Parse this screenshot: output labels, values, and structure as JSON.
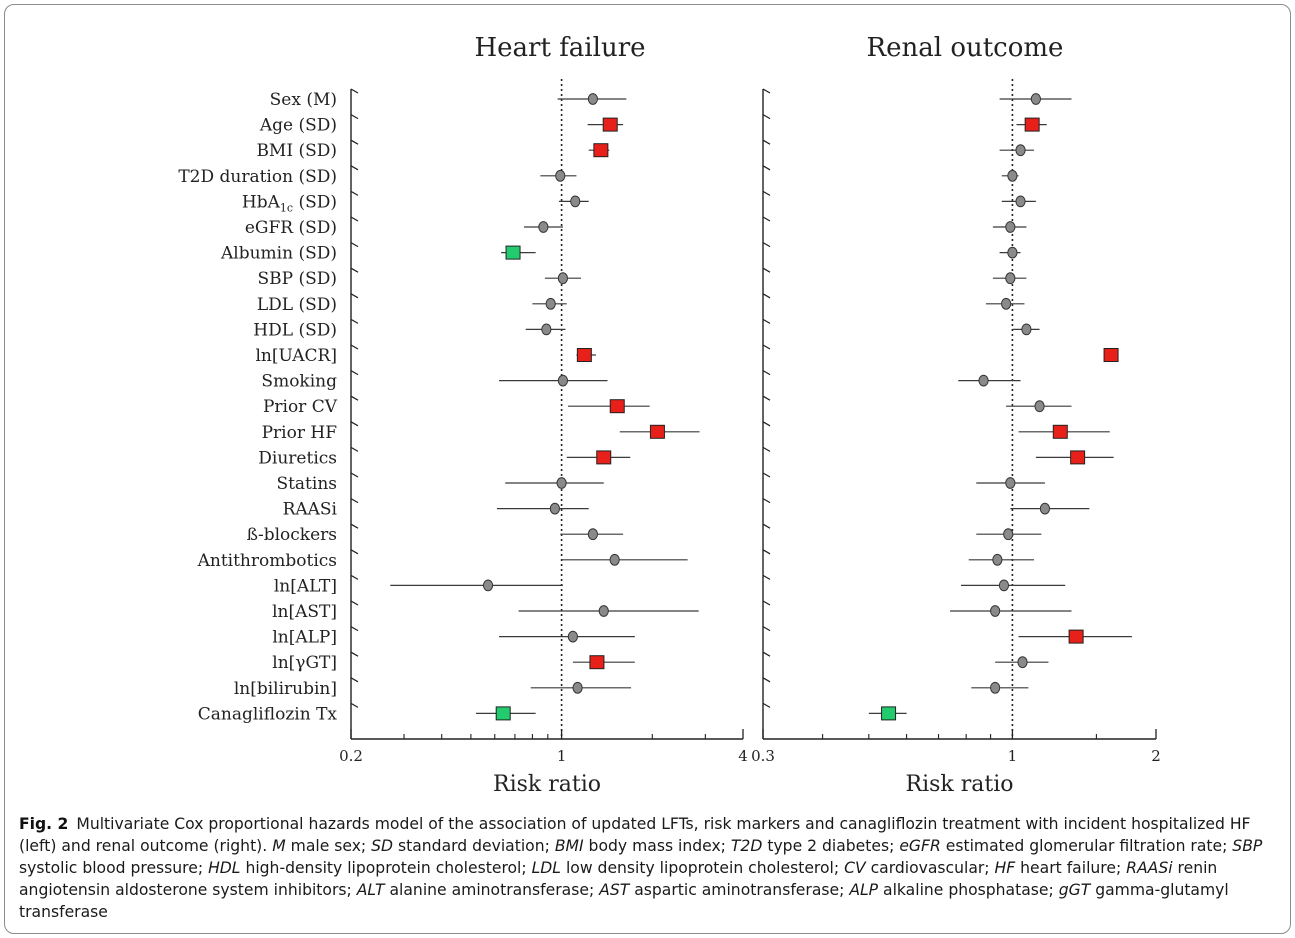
{
  "chart_data": [
    {
      "type": "forest",
      "title": "Heart failure",
      "xlabel": "Risk ratio",
      "xscale": "log",
      "xlim": [
        0.2,
        4
      ],
      "ticks": [
        0.2,
        1,
        4
      ],
      "reference_line": 1,
      "categories": [
        "Sex (M)",
        "Age (SD)",
        "BMI (SD)",
        "T2D duration (SD)",
        "HbA1c (SD)",
        "eGFR (SD)",
        "Albumin (SD)",
        "SBP (SD)",
        "LDL (SD)",
        "HDL (SD)",
        "ln[UACR]",
        "Smoking",
        "Prior CV",
        "Prior HF",
        "Diuretics",
        "Statins",
        "RAASi",
        "ß-blockers",
        "Antithrombotics",
        "ln[ALT]",
        "ln[AST]",
        "ln[ALP]",
        "ln[γGT]",
        "ln[bilirubin]",
        "Canagliflozin Tx"
      ],
      "estimate": [
        1.27,
        1.45,
        1.35,
        0.99,
        1.11,
        0.87,
        0.69,
        1.01,
        0.92,
        0.89,
        1.19,
        1.01,
        1.53,
        2.08,
        1.38,
        1.0,
        0.95,
        1.27,
        1.5,
        0.57,
        1.38,
        1.09,
        1.31,
        1.13,
        0.64
      ],
      "lower": [
        0.97,
        1.22,
        1.23,
        0.85,
        0.98,
        0.75,
        0.63,
        0.88,
        0.8,
        0.76,
        1.12,
        0.62,
        1.05,
        1.56,
        1.04,
        0.65,
        0.61,
        0.99,
        1.0,
        0.27,
        0.72,
        0.62,
        1.09,
        0.79,
        0.52
      ],
      "upper": [
        1.64,
        1.6,
        1.44,
        1.12,
        1.23,
        1.01,
        0.82,
        1.16,
        1.04,
        1.03,
        1.3,
        1.42,
        1.96,
        2.87,
        1.69,
        1.38,
        1.23,
        1.6,
        2.62,
        1.01,
        2.85,
        1.75,
        1.75,
        1.7,
        0.82
      ],
      "marker": [
        "circle",
        "square-red",
        "square-red",
        "circle",
        "circle",
        "circle",
        "square-green",
        "circle",
        "circle",
        "circle",
        "square-red",
        "circle",
        "square-red",
        "square-red",
        "square-red",
        "circle",
        "circle",
        "circle",
        "circle",
        "circle",
        "circle",
        "circle",
        "square-red",
        "circle",
        "square-green"
      ]
    },
    {
      "type": "forest",
      "title": "Renal outcome",
      "xlabel": "Risk ratio",
      "xscale": "log",
      "xlim": [
        0.3,
        2
      ],
      "ticks": [
        0.3,
        1,
        2
      ],
      "reference_line": 1,
      "categories": [
        "Sex (M)",
        "Age (SD)",
        "BMI (SD)",
        "T2D duration (SD)",
        "HbA1c (SD)",
        "eGFR (SD)",
        "Albumin (SD)",
        "SBP (SD)",
        "LDL (SD)",
        "HDL (SD)",
        "ln[UACR]",
        "Smoking",
        "Prior CV",
        "Prior HF",
        "Diuretics",
        "Statins",
        "RAASi",
        "ß-blockers",
        "Antithrombotics",
        "ln[ALT]",
        "ln[AST]",
        "ln[ALP]",
        "ln[γGT]",
        "ln[bilirubin]",
        "Canagliflozin Tx"
      ],
      "estimate": [
        1.12,
        1.1,
        1.04,
        1.0,
        1.04,
        0.99,
        1.0,
        0.99,
        0.97,
        1.07,
        1.61,
        0.87,
        1.14,
        1.26,
        1.37,
        0.99,
        1.17,
        0.98,
        0.93,
        0.96,
        0.92,
        1.36,
        1.05,
        0.92,
        0.55
      ],
      "lower": [
        0.94,
        1.02,
        0.94,
        0.95,
        0.95,
        0.91,
        0.94,
        0.91,
        0.88,
        1.0,
        1.58,
        0.77,
        0.97,
        1.03,
        1.12,
        0.84,
        0.99,
        0.84,
        0.81,
        0.78,
        0.74,
        1.03,
        0.92,
        0.82,
        0.5
      ],
      "upper": [
        1.33,
        1.18,
        1.11,
        1.03,
        1.12,
        1.07,
        1.04,
        1.07,
        1.06,
        1.14,
        1.64,
        1.04,
        1.33,
        1.6,
        1.63,
        1.17,
        1.45,
        1.15,
        1.11,
        1.29,
        1.33,
        1.78,
        1.19,
        1.08,
        0.6
      ],
      "marker": [
        "circle",
        "square-red",
        "circle",
        "circle",
        "circle",
        "circle",
        "circle",
        "circle",
        "circle",
        "circle",
        "square-red",
        "circle",
        "circle",
        "square-red",
        "square-red",
        "circle",
        "circle",
        "circle",
        "circle",
        "circle",
        "circle",
        "square-red",
        "circle",
        "circle",
        "square-green"
      ]
    }
  ],
  "labels": {
    "hba1c_main": "HbA",
    "hba1c_sub": "1c",
    "hba1c_suffix": " (SD)"
  },
  "colors": {
    "red": "#e8201a",
    "green": "#22cc6e",
    "gray": "#8a8a8a",
    "line": "#3a3a3a"
  },
  "caption": {
    "label": "Fig. 2",
    "sentence": "Multivariate Cox proportional hazards model of the association of updated LFTs, risk markers and canagliflozin treatment with incident hospitalized HF (left) and renal outcome (right).",
    "abbreviations": [
      {
        "abbr": "M",
        "def": "male sex"
      },
      {
        "abbr": "SD",
        "def": "standard deviation"
      },
      {
        "abbr": "BMI",
        "def": "body mass index"
      },
      {
        "abbr": "T2D",
        "def": "type 2 diabetes"
      },
      {
        "abbr": "eGFR",
        "def": "estimated glomerular filtration rate"
      },
      {
        "abbr": "SBP",
        "def": "systolic blood pressure"
      },
      {
        "abbr": "HDL",
        "def": "high-density lipoprotein cholesterol"
      },
      {
        "abbr": "LDL",
        "def": "low density lipoprotein cholesterol"
      },
      {
        "abbr": "CV",
        "def": "cardiovascular"
      },
      {
        "abbr": "HF",
        "def": "heart failure"
      },
      {
        "abbr": "RAASi",
        "def": "renin angiotensin aldosterone system inhibitors"
      },
      {
        "abbr": "ALT",
        "def": "alanine aminotransferase"
      },
      {
        "abbr": "AST",
        "def": "aspartic aminotransferase"
      },
      {
        "abbr": "ALP",
        "def": "alkaline phosphatase"
      },
      {
        "abbr": "gGT",
        "def": "gamma-glutamyl transferase"
      }
    ]
  }
}
